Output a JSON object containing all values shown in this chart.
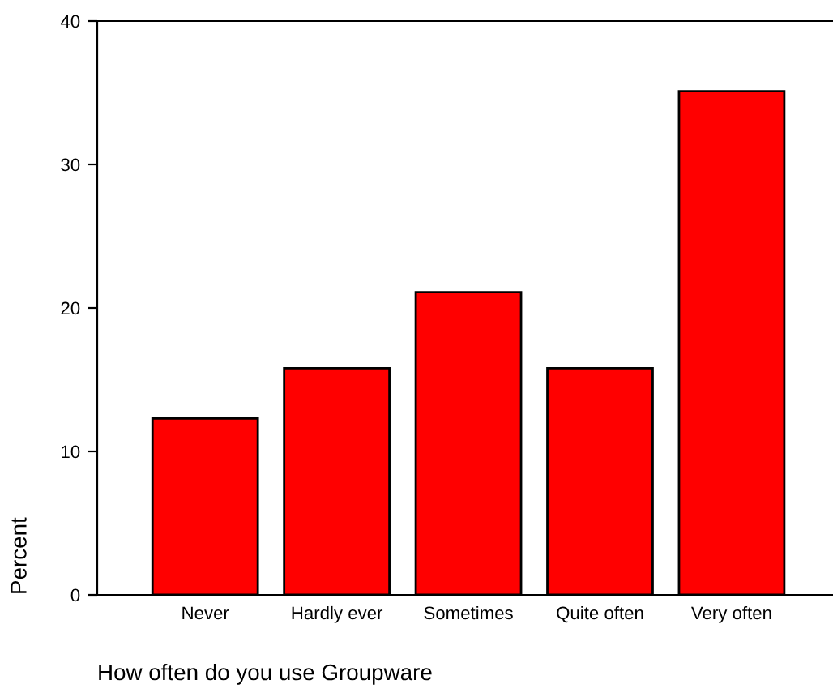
{
  "chart_data": {
    "type": "bar",
    "xlabel": "How often do you use Groupware",
    "ylabel": "Percent",
    "categories": [
      "Never",
      "Hardly ever",
      "Sometimes",
      "Quite often",
      "Very often"
    ],
    "values": [
      12.3,
      15.8,
      21.1,
      15.8,
      35.1
    ],
    "color": "#ff0000",
    "ylim": [
      0,
      40
    ],
    "yticks": [
      0,
      10,
      20,
      30,
      40
    ],
    "grid": false,
    "legend": false
  }
}
